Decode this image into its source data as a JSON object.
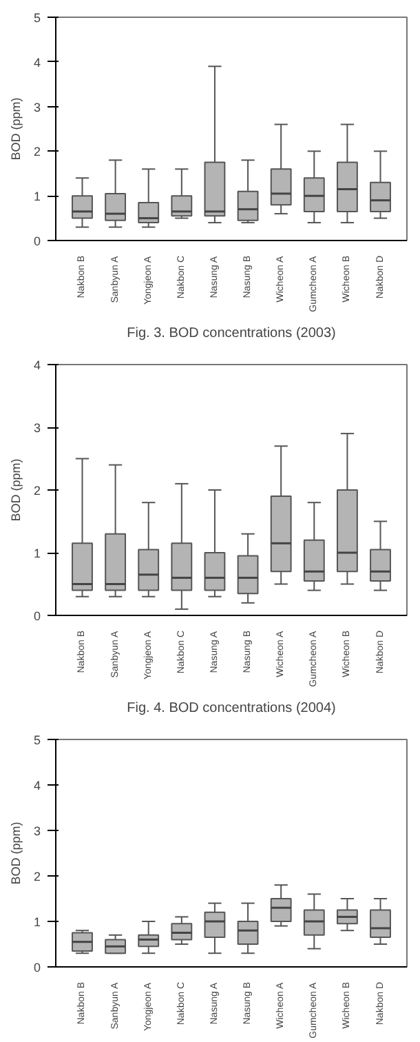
{
  "chart_data": [
    {
      "type": "box",
      "ylabel": "BOD (ppm)",
      "ylim": [
        0,
        5
      ],
      "yticks": [
        0,
        1,
        2,
        3,
        4,
        5
      ],
      "categories": [
        "Nakbon B",
        "Sanbyun A",
        "Yongjeon A",
        "Nakbon C",
        "Nasung A",
        "Nasung B",
        "Wicheon A",
        "Gumcheon A",
        "Wicheon B",
        "Nakbon D"
      ],
      "series": [
        {
          "color": "#b4b4b4",
          "boxes": [
            {
              "low": 0.3,
              "q1": 0.5,
              "median": 0.65,
              "q3": 1.0,
              "high": 1.4
            },
            {
              "low": 0.3,
              "q1": 0.45,
              "median": 0.6,
              "q3": 1.05,
              "high": 1.8
            },
            {
              "low": 0.3,
              "q1": 0.4,
              "median": 0.5,
              "q3": 0.85,
              "high": 1.6
            },
            {
              "low": 0.5,
              "q1": 0.55,
              "median": 0.65,
              "q3": 1.0,
              "high": 1.6
            },
            {
              "low": 0.4,
              "q1": 0.55,
              "median": 0.65,
              "q3": 1.75,
              "high": 3.9
            },
            {
              "low": 0.4,
              "q1": 0.45,
              "median": 0.7,
              "q3": 1.1,
              "high": 1.8
            },
            {
              "low": 0.6,
              "q1": 0.8,
              "median": 1.05,
              "q3": 1.6,
              "high": 2.6
            },
            {
              "low": 0.4,
              "q1": 0.65,
              "median": 1.0,
              "q3": 1.4,
              "high": 2.0
            },
            {
              "low": 0.4,
              "q1": 0.65,
              "median": 1.15,
              "q3": 1.75,
              "high": 2.6
            },
            {
              "low": 0.5,
              "q1": 0.65,
              "median": 0.9,
              "q3": 1.3,
              "high": 2.0
            }
          ]
        }
      ],
      "annotations": [
        "Fig. 3. BOD concentrations (2003)"
      ]
    },
    {
      "type": "box",
      "ylabel": "BOD (ppm)",
      "ylim": [
        0,
        4
      ],
      "yticks": [
        0,
        1,
        2,
        3,
        4
      ],
      "categories": [
        "Nakbon B",
        "Sanbyun A",
        "Yongjeon A",
        "Nakbon C",
        "Nasung A",
        "Nasung B",
        "Wicheon A",
        "Gumcheon A",
        "Wicheon B",
        "Nakbon D"
      ],
      "series": [
        {
          "color": "#b4b4b4",
          "boxes": [
            {
              "low": 0.3,
              "q1": 0.4,
              "median": 0.5,
              "q3": 1.15,
              "high": 2.5
            },
            {
              "low": 0.3,
              "q1": 0.4,
              "median": 0.5,
              "q3": 1.3,
              "high": 2.4
            },
            {
              "low": 0.3,
              "q1": 0.4,
              "median": 0.65,
              "q3": 1.05,
              "high": 1.8
            },
            {
              "low": 0.1,
              "q1": 0.4,
              "median": 0.6,
              "q3": 1.15,
              "high": 2.1
            },
            {
              "low": 0.3,
              "q1": 0.4,
              "median": 0.6,
              "q3": 1.0,
              "high": 2.0
            },
            {
              "low": 0.2,
              "q1": 0.35,
              "median": 0.6,
              "q3": 0.95,
              "high": 1.3
            },
            {
              "low": 0.5,
              "q1": 0.7,
              "median": 1.15,
              "q3": 1.9,
              "high": 2.7
            },
            {
              "low": 0.4,
              "q1": 0.55,
              "median": 0.7,
              "q3": 1.2,
              "high": 1.8
            },
            {
              "low": 0.5,
              "q1": 0.7,
              "median": 1.0,
              "q3": 2.0,
              "high": 2.9
            },
            {
              "low": 0.4,
              "q1": 0.55,
              "median": 0.7,
              "q3": 1.05,
              "high": 1.5
            }
          ]
        }
      ],
      "annotations": [
        "Fig. 4. BOD concentrations (2004)"
      ]
    },
    {
      "type": "box",
      "ylabel": "BOD (ppm)",
      "ylim": [
        0,
        5
      ],
      "yticks": [
        0,
        1,
        2,
        3,
        4,
        5
      ],
      "categories": [
        "Nakbon B",
        "Sanbyun A",
        "Yongjeon A",
        "Nakbon C",
        "Nasung A",
        "Nasung B",
        "Wicheon A",
        "Gumcheon A",
        "Wicheon B",
        "Nakbon D"
      ],
      "series": [
        {
          "color": "#b4b4b4",
          "boxes": [
            {
              "low": 0.3,
              "q1": 0.35,
              "median": 0.55,
              "q3": 0.75,
              "high": 0.8
            },
            {
              "low": 0.3,
              "q1": 0.3,
              "median": 0.45,
              "q3": 0.6,
              "high": 0.7
            },
            {
              "low": 0.3,
              "q1": 0.45,
              "median": 0.6,
              "q3": 0.7,
              "high": 1.0
            },
            {
              "low": 0.5,
              "q1": 0.6,
              "median": 0.75,
              "q3": 0.95,
              "high": 1.1
            },
            {
              "low": 0.3,
              "q1": 0.65,
              "median": 1.0,
              "q3": 1.2,
              "high": 1.4
            },
            {
              "low": 0.3,
              "q1": 0.5,
              "median": 0.8,
              "q3": 1.0,
              "high": 1.4
            },
            {
              "low": 0.9,
              "q1": 1.0,
              "median": 1.3,
              "q3": 1.5,
              "high": 1.8
            },
            {
              "low": 0.4,
              "q1": 0.7,
              "median": 1.0,
              "q3": 1.25,
              "high": 1.6
            },
            {
              "low": 0.8,
              "q1": 0.95,
              "median": 1.1,
              "q3": 1.25,
              "high": 1.5
            },
            {
              "low": 0.5,
              "q1": 0.65,
              "median": 0.85,
              "q3": 1.25,
              "high": 1.5
            }
          ]
        }
      ]
    }
  ]
}
